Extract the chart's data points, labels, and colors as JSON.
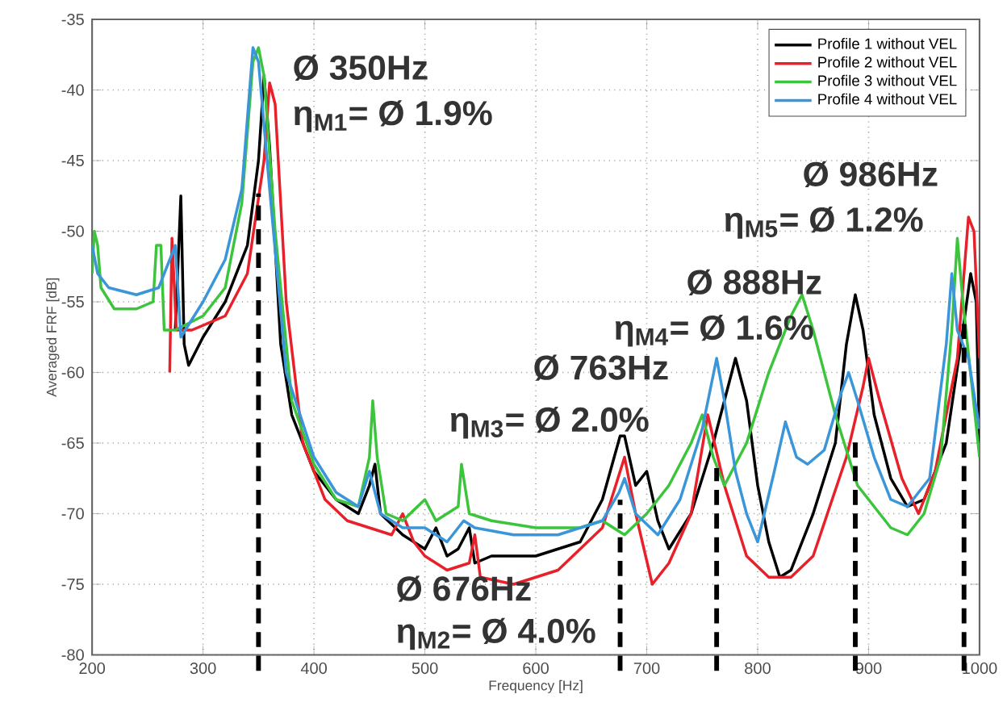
{
  "chart_data": {
    "type": "line",
    "xlabel": "Frequency [Hz]",
    "ylabel": "Averaged FRF [dB]",
    "xlim": [
      200,
      1000
    ],
    "ylim": [
      -80,
      -35
    ],
    "xticks": [
      200,
      300,
      400,
      500,
      600,
      700,
      800,
      900,
      1000
    ],
    "yticks": [
      -80,
      -75,
      -70,
      -65,
      -60,
      -55,
      -50,
      -45,
      -40,
      -35
    ],
    "grid": true,
    "legend": "top right",
    "marker": "none",
    "line_style": "solid",
    "series": [
      {
        "name": "Profile 1 without VEL",
        "color": "#000000",
        "x": [
          275,
          280,
          283,
          287,
          300,
          320,
          340,
          350,
          355,
          360,
          370,
          380,
          400,
          420,
          440,
          450,
          455,
          460,
          480,
          500,
          510,
          520,
          530,
          540,
          545,
          560,
          600,
          640,
          660,
          676,
          680,
          690,
          700,
          710,
          720,
          740,
          760,
          770,
          780,
          790,
          800,
          810,
          820,
          830,
          850,
          870,
          880,
          888,
          895,
          905,
          920,
          935,
          950,
          970,
          985,
          992,
          997,
          1000
        ],
        "values": [
          -57,
          -47.5,
          -58,
          -59.5,
          -57.5,
          -55,
          -51,
          -45,
          -39,
          -44,
          -58,
          -63,
          -67,
          -69,
          -70,
          -68,
          -66.5,
          -70,
          -71.5,
          -72.5,
          -71,
          -73,
          -72.5,
          -71,
          -73.5,
          -73,
          -73,
          -72,
          -69,
          -64.5,
          -64.5,
          -68,
          -67,
          -70.5,
          -72.5,
          -70,
          -65,
          -62,
          -59,
          -62,
          -68,
          -72,
          -74.5,
          -74,
          -70,
          -65,
          -58,
          -54.5,
          -57,
          -63,
          -67.5,
          -69.5,
          -69,
          -65,
          -57,
          -53,
          -55,
          -65
        ]
      },
      {
        "name": "Profile 2 without VEL",
        "color": "#e8202a",
        "x": [
          270,
          272,
          276,
          290,
          320,
          340,
          355,
          360,
          365,
          375,
          390,
          410,
          430,
          450,
          470,
          480,
          490,
          500,
          520,
          540,
          545,
          550,
          580,
          620,
          660,
          680,
          690,
          705,
          720,
          740,
          755,
          770,
          790,
          810,
          830,
          850,
          880,
          895,
          900,
          910,
          930,
          945,
          960,
          980,
          990,
          995,
          1000
        ],
        "values": [
          -60,
          -50.5,
          -57,
          -57,
          -56,
          -53,
          -45,
          -39.5,
          -41,
          -55,
          -65,
          -69,
          -70.5,
          -71,
          -71.5,
          -70,
          -72,
          -73,
          -74,
          -73.5,
          -71.5,
          -74.5,
          -75,
          -74,
          -71,
          -66,
          -70,
          -75,
          -73.5,
          -70,
          -63,
          -68,
          -73,
          -74.5,
          -74.5,
          -73,
          -66,
          -61,
          -59,
          -62,
          -67.5,
          -70,
          -67,
          -59,
          -49,
          -50,
          -59
        ]
      },
      {
        "name": "Profile 3 without VEL",
        "color": "#3cc43c",
        "x": [
          200,
          202,
          205,
          208,
          220,
          240,
          255,
          258,
          262,
          265,
          275,
          300,
          320,
          335,
          345,
          350,
          355,
          365,
          380,
          400,
          420,
          440,
          450,
          453,
          457,
          465,
          480,
          500,
          510,
          530,
          533,
          540,
          560,
          600,
          640,
          660,
          680,
          700,
          720,
          740,
          750,
          760,
          770,
          790,
          810,
          830,
          840,
          850,
          870,
          890,
          920,
          935,
          950,
          965,
          975,
          980,
          985,
          1000
        ],
        "values": [
          -53,
          -50,
          -51,
          -54,
          -55.5,
          -55.5,
          -55,
          -51,
          -51,
          -57,
          -57,
          -56,
          -54,
          -48,
          -38,
          -37,
          -39,
          -50,
          -62,
          -66.5,
          -69,
          -69.5,
          -66,
          -62,
          -66,
          -70,
          -70.5,
          -69,
          -70.5,
          -69.5,
          -66.5,
          -70,
          -70.5,
          -71,
          -71,
          -70.5,
          -71.5,
          -70,
          -68,
          -65,
          -63,
          -66,
          -68,
          -65,
          -60,
          -56,
          -54.5,
          -57,
          -63,
          -68,
          -71,
          -71.5,
          -70,
          -66,
          -57,
          -50.5,
          -55,
          -66
        ]
      },
      {
        "name": "Profile 4 without VEL",
        "color": "#3a96d8",
        "x": [
          200,
          205,
          215,
          240,
          260,
          270,
          275,
          280,
          300,
          320,
          335,
          345,
          350,
          360,
          375,
          400,
          420,
          440,
          450,
          455,
          460,
          480,
          500,
          520,
          535,
          545,
          580,
          620,
          660,
          675,
          680,
          690,
          710,
          730,
          750,
          763,
          770,
          780,
          790,
          800,
          815,
          825,
          835,
          845,
          860,
          875,
          882,
          890,
          905,
          920,
          935,
          955,
          970,
          975,
          980,
          990,
          1000
        ],
        "values": [
          -51,
          -53,
          -54,
          -54.5,
          -54,
          -52,
          -51,
          -57.5,
          -55,
          -52,
          -47,
          -37,
          -38,
          -47,
          -60,
          -66,
          -68.5,
          -69.5,
          -67,
          -68.5,
          -70,
          -71,
          -71,
          -72,
          -70.5,
          -71,
          -71.5,
          -71.5,
          -70.5,
          -68.5,
          -67.5,
          -70,
          -71.5,
          -69,
          -64,
          -59,
          -62,
          -67,
          -70,
          -72,
          -67,
          -63.5,
          -66,
          -66.5,
          -65.5,
          -61.5,
          -60,
          -62,
          -66,
          -69,
          -69.5,
          -67.5,
          -58,
          -53,
          -57,
          -59,
          -64
        ]
      }
    ],
    "ref_lines": [
      {
        "axis": "x",
        "value": 350,
        "color": "#000000",
        "line_style": "dashed"
      },
      {
        "axis": "x",
        "value": 676,
        "color": "#000000",
        "line_style": "dashed"
      },
      {
        "axis": "x",
        "value": 763,
        "color": "#000000",
        "line_style": "dashed"
      },
      {
        "axis": "x",
        "value": 888,
        "color": "#000000",
        "line_style": "dashed"
      },
      {
        "axis": "x",
        "value": 986,
        "color": "#000000",
        "line_style": "dashed"
      }
    ],
    "annotations": [
      "Ø 350Hz",
      "η$_{M1}$= Ø 1.9%",
      "Ø 676Hz",
      "η$_{M2}$= Ø 4.0%",
      "Ø 763Hz",
      "η$_{M3}$= Ø 2.0%",
      "Ø 888Hz",
      "η$_{M4}$= Ø 1.6%",
      "Ø 986Hz",
      "η$_{M5}$= Ø 1.2%"
    ]
  }
}
